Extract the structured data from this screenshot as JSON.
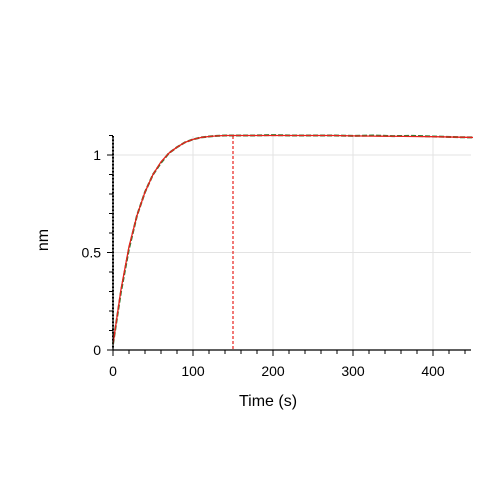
{
  "chart_data": {
    "type": "line",
    "title": "",
    "xlabel": "Time (s)",
    "ylabel": "nm",
    "xlim": [
      0,
      450
    ],
    "ylim": [
      0,
      1.1
    ],
    "xticks": [
      0,
      100,
      200,
      300,
      400
    ],
    "xtick_labels": [
      "0",
      "100",
      "200",
      "300",
      "400"
    ],
    "yticks": [
      0,
      0.5,
      1
    ],
    "ytick_labels": [
      "0",
      "0.5",
      "1"
    ],
    "grid": true,
    "legend": "none",
    "vertical_markers": [
      {
        "x": 0,
        "color": "#000000",
        "style": "dotted"
      },
      {
        "x": 150,
        "color": "#e8201c",
        "style": "dashed"
      }
    ],
    "series": [
      {
        "color": "#2e7d32",
        "style": "dashed",
        "x": [
          0,
          10,
          20,
          30,
          40,
          50,
          60,
          70,
          80,
          90,
          100,
          110,
          120,
          130,
          140,
          150,
          175,
          200,
          225,
          250,
          275,
          300,
          325,
          350,
          375,
          400,
          425,
          450
        ],
        "y": [
          0.03,
          0.3,
          0.52,
          0.69,
          0.81,
          0.9,
          0.96,
          1.01,
          1.04,
          1.065,
          1.08,
          1.09,
          1.095,
          1.098,
          1.1,
          1.1,
          1.1,
          1.102,
          1.1,
          1.1,
          1.1,
          1.098,
          1.1,
          1.097,
          1.098,
          1.095,
          1.092,
          1.09
        ]
      },
      {
        "color": "#e8201c",
        "style": "solid",
        "x": [
          0,
          10,
          20,
          30,
          40,
          50,
          60,
          70,
          80,
          90,
          100,
          110,
          120,
          130,
          140,
          150,
          175,
          200,
          225,
          250,
          275,
          300,
          325,
          350,
          375,
          400,
          425,
          450
        ],
        "y": [
          0.03,
          0.31,
          0.53,
          0.69,
          0.81,
          0.9,
          0.965,
          1.01,
          1.04,
          1.065,
          1.08,
          1.09,
          1.095,
          1.098,
          1.1,
          1.1,
          1.1,
          1.1,
          1.1,
          1.1,
          1.1,
          1.098,
          1.097,
          1.096,
          1.095,
          1.094,
          1.092,
          1.09
        ]
      }
    ]
  }
}
